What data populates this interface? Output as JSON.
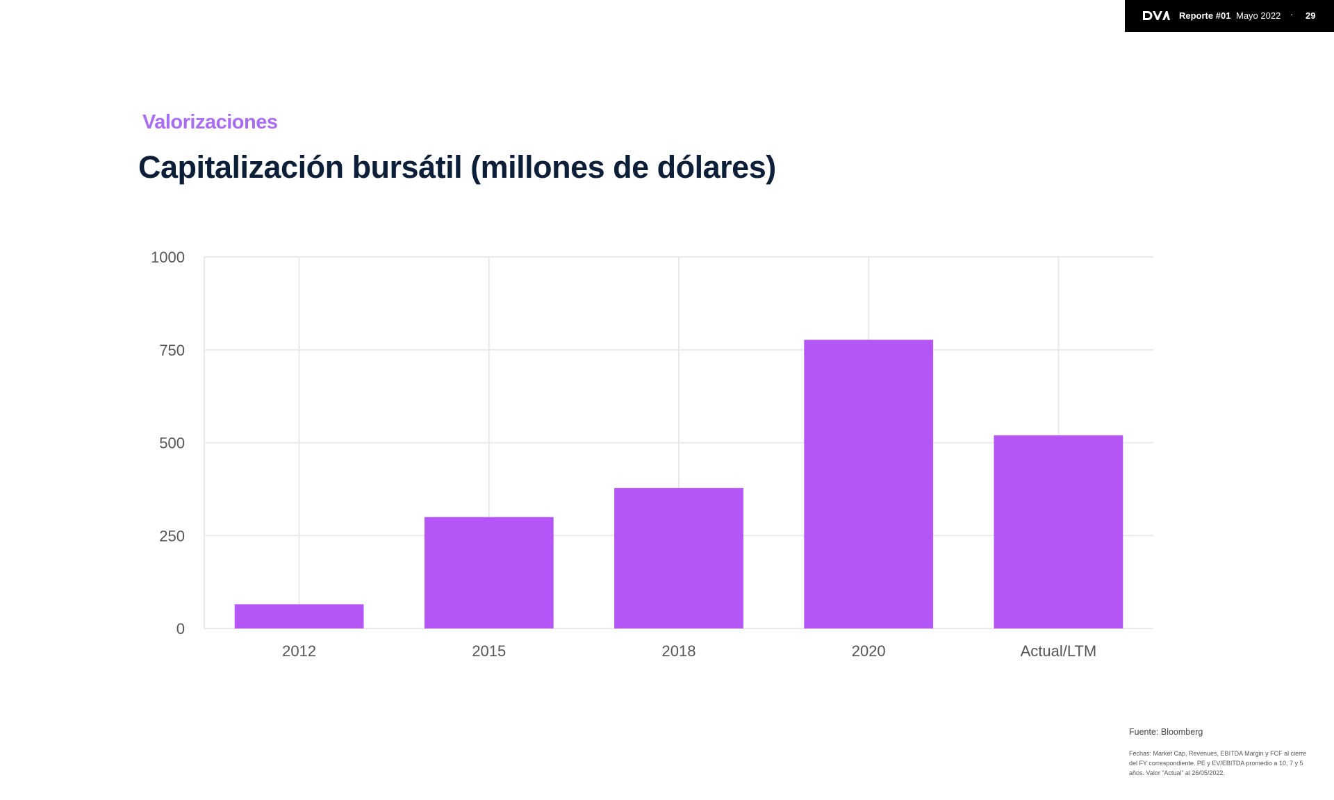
{
  "header": {
    "brand": "DVA",
    "report_bold": "Reporte #01",
    "report_date": "Mayo 2022",
    "separator": "·",
    "page": "29"
  },
  "section_label": "Valorizaciones",
  "title": "Capitalización bursátil  (millones de dólares)",
  "footer": {
    "source": "Fuente: Bloomberg",
    "notes": "Fechas: Market Cap, Revenues, EBITDA Margin y FCF al cierre del FY correspondiente. PE y EV/EBITDA promedio a 10, 7 y 5 años. Valor “Actual” al 26/05/2022."
  },
  "colors": {
    "bar": "#b455f5",
    "grid": "#e9e9e9",
    "accent": "#a86df2",
    "title": "#0d1f38"
  },
  "chart_data": {
    "type": "bar",
    "categories": [
      "2012",
      "2015",
      "2018",
      "2020",
      "Actual/LTM"
    ],
    "values": [
      65,
      300,
      378,
      777,
      520
    ],
    "ylim": [
      0,
      1000
    ],
    "yticks": [
      0,
      250,
      500,
      750,
      1000
    ],
    "title": "",
    "xlabel": "",
    "ylabel": "",
    "grid": true,
    "legend": "none"
  }
}
